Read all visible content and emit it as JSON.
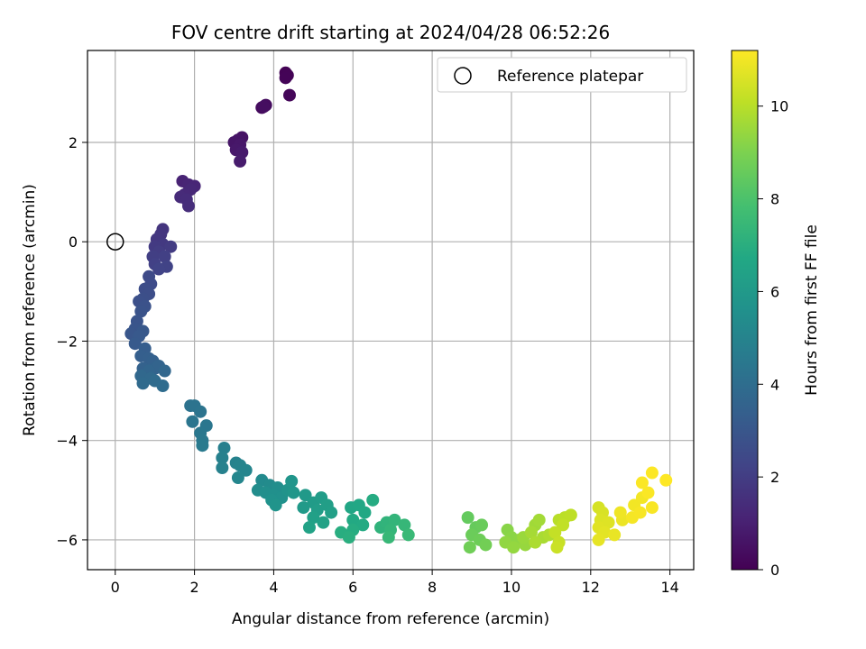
{
  "chart_data": {
    "type": "scatter",
    "title": "FOV centre drift starting at 2024/04/28 06:52:26",
    "xlabel": "Angular distance from reference (arcmin)",
    "ylabel": "Rotation from reference (arcmin)",
    "xlim": [
      -0.7,
      14.6
    ],
    "ylim": [
      -6.6,
      3.85
    ],
    "xticks": [
      0,
      2,
      4,
      6,
      8,
      10,
      12,
      14
    ],
    "yticks": [
      -6,
      -4,
      -2,
      0,
      2
    ],
    "xtick_labels": [
      "0",
      "2",
      "4",
      "6",
      "8",
      "10",
      "12",
      "14"
    ],
    "ytick_labels": [
      "−6",
      "−4",
      "−2",
      "0",
      "2"
    ],
    "grid": true,
    "legend": {
      "position": "top-right",
      "label": "Reference platepar"
    },
    "reference_point": {
      "x": 0,
      "y": 0
    },
    "colorbar": {
      "label": "Hours from first FF file",
      "range": [
        0,
        11.2
      ],
      "ticks": [
        0,
        2,
        4,
        6,
        8,
        10
      ],
      "tick_labels": [
        "0",
        "2",
        "4",
        "6",
        "8",
        "10"
      ],
      "colormap": "viridis"
    },
    "colors": {
      "viridis": [
        "#440154",
        "#482475",
        "#414487",
        "#355f8d",
        "#2a788e",
        "#21918c",
        "#22a884",
        "#44bf70",
        "#7ad151",
        "#bddf26",
        "#fde725"
      ],
      "grid": "#b0b0b0",
      "axis": "#000000"
    },
    "series": [
      {
        "values": [
          [
            4.3,
            3.4,
            0.05
          ],
          [
            4.35,
            3.35,
            0.08
          ],
          [
            4.3,
            3.3,
            0.1
          ],
          [
            4.4,
            2.95,
            0.18
          ],
          [
            3.7,
            2.7,
            0.3
          ],
          [
            3.8,
            2.75,
            0.35
          ],
          [
            3.75,
            2.72,
            0.4
          ],
          [
            3.2,
            2.1,
            0.55
          ],
          [
            3.1,
            2.05,
            0.6
          ],
          [
            3.0,
            2.0,
            0.65
          ],
          [
            3.15,
            1.95,
            0.7
          ],
          [
            3.05,
            1.85,
            0.75
          ],
          [
            3.2,
            1.8,
            0.8
          ],
          [
            3.15,
            1.62,
            0.85
          ],
          [
            1.7,
            1.22,
            1.1
          ],
          [
            1.85,
            1.15,
            1.15
          ],
          [
            2.0,
            1.12,
            1.2
          ],
          [
            1.9,
            1.05,
            1.25
          ],
          [
            1.75,
            0.95,
            1.3
          ],
          [
            1.65,
            0.9,
            1.35
          ],
          [
            1.8,
            0.85,
            1.4
          ],
          [
            1.85,
            0.72,
            1.45
          ],
          [
            1.2,
            0.25,
            1.7
          ],
          [
            1.15,
            0.15,
            1.75
          ],
          [
            1.05,
            0.05,
            1.8
          ],
          [
            1.2,
            -0.05,
            1.85
          ],
          [
            1.0,
            -0.1,
            1.9
          ],
          [
            1.4,
            -0.1,
            1.95
          ],
          [
            1.1,
            -0.2,
            2.0
          ],
          [
            0.95,
            -0.3,
            2.05
          ],
          [
            1.25,
            -0.3,
            2.1
          ],
          [
            1.0,
            -0.45,
            2.15
          ],
          [
            1.3,
            -0.5,
            2.2
          ],
          [
            1.1,
            -0.55,
            2.25
          ],
          [
            0.85,
            -0.7,
            2.5
          ],
          [
            0.9,
            -0.85,
            2.55
          ],
          [
            0.75,
            -0.95,
            2.6
          ],
          [
            0.85,
            -1.05,
            2.65
          ],
          [
            0.7,
            -1.15,
            2.7
          ],
          [
            0.6,
            -1.2,
            2.75
          ],
          [
            0.75,
            -1.3,
            2.8
          ],
          [
            0.65,
            -1.4,
            2.85
          ],
          [
            0.55,
            -1.6,
            2.9
          ],
          [
            0.5,
            -1.75,
            2.95
          ],
          [
            0.4,
            -1.85,
            3.0
          ],
          [
            0.7,
            -1.8,
            3.05
          ],
          [
            0.6,
            -1.9,
            3.1
          ],
          [
            0.5,
            -2.05,
            3.15
          ],
          [
            0.75,
            -2.15,
            3.3
          ],
          [
            0.65,
            -2.3,
            3.35
          ],
          [
            0.85,
            -2.35,
            3.4
          ],
          [
            0.95,
            -2.4,
            3.45
          ],
          [
            0.7,
            -2.55,
            3.5
          ],
          [
            1.0,
            -2.55,
            3.55
          ],
          [
            1.1,
            -2.5,
            3.6
          ],
          [
            0.85,
            -2.6,
            3.65
          ],
          [
            1.25,
            -2.6,
            3.7
          ],
          [
            0.65,
            -2.7,
            3.75
          ],
          [
            0.9,
            -2.75,
            3.8
          ],
          [
            0.7,
            -2.85,
            3.85
          ],
          [
            1.0,
            -2.8,
            3.9
          ],
          [
            1.2,
            -2.9,
            3.95
          ],
          [
            1.9,
            -3.3,
            4.2
          ],
          [
            2.0,
            -3.3,
            4.25
          ],
          [
            2.15,
            -3.42,
            4.3
          ],
          [
            1.95,
            -3.62,
            4.35
          ],
          [
            2.3,
            -3.7,
            4.4
          ],
          [
            2.15,
            -3.85,
            4.45
          ],
          [
            2.2,
            -4.0,
            4.5
          ],
          [
            2.2,
            -4.1,
            4.55
          ],
          [
            2.75,
            -4.15,
            4.8
          ],
          [
            2.7,
            -4.35,
            4.85
          ],
          [
            2.7,
            -4.55,
            4.9
          ],
          [
            3.05,
            -4.45,
            4.95
          ],
          [
            3.15,
            -4.5,
            5.0
          ],
          [
            3.3,
            -4.6,
            5.05
          ],
          [
            3.1,
            -4.75,
            5.1
          ],
          [
            3.7,
            -4.8,
            5.3
          ],
          [
            3.9,
            -4.9,
            5.35
          ],
          [
            3.6,
            -5.0,
            5.4
          ],
          [
            4.1,
            -4.95,
            5.45
          ],
          [
            3.8,
            -5.05,
            5.5
          ],
          [
            4.0,
            -5.1,
            5.55
          ],
          [
            4.2,
            -5.15,
            5.6
          ],
          [
            3.95,
            -5.2,
            5.65
          ],
          [
            4.35,
            -5.0,
            5.7
          ],
          [
            4.05,
            -5.3,
            5.75
          ],
          [
            4.45,
            -4.82,
            5.8
          ],
          [
            4.5,
            -5.05,
            5.85
          ],
          [
            4.8,
            -5.1,
            6.0
          ],
          [
            4.75,
            -5.35,
            6.05
          ],
          [
            5.0,
            -5.25,
            6.1
          ],
          [
            5.2,
            -5.15,
            6.15
          ],
          [
            5.1,
            -5.4,
            6.2
          ],
          [
            5.35,
            -5.3,
            6.25
          ],
          [
            5.45,
            -5.45,
            6.3
          ],
          [
            5.0,
            -5.55,
            6.35
          ],
          [
            5.25,
            -5.65,
            6.4
          ],
          [
            4.9,
            -5.75,
            6.45
          ],
          [
            5.95,
            -5.35,
            6.6
          ],
          [
            6.15,
            -5.3,
            6.65
          ],
          [
            6.3,
            -5.45,
            6.7
          ],
          [
            6.0,
            -5.6,
            6.75
          ],
          [
            6.25,
            -5.7,
            6.8
          ],
          [
            6.5,
            -5.2,
            6.85
          ],
          [
            6.0,
            -5.8,
            6.9
          ],
          [
            5.7,
            -5.85,
            6.95
          ],
          [
            5.9,
            -5.95,
            7.0
          ],
          [
            6.7,
            -5.75,
            7.2
          ],
          [
            6.85,
            -5.65,
            7.25
          ],
          [
            7.05,
            -5.6,
            7.3
          ],
          [
            6.95,
            -5.8,
            7.35
          ],
          [
            7.3,
            -5.7,
            7.4
          ],
          [
            6.9,
            -5.95,
            7.45
          ],
          [
            7.4,
            -5.9,
            7.5
          ],
          [
            8.9,
            -5.55,
            8.5
          ],
          [
            9.1,
            -5.75,
            8.55
          ],
          [
            9.25,
            -5.7,
            8.6
          ],
          [
            9.0,
            -5.9,
            8.65
          ],
          [
            9.2,
            -6.0,
            8.7
          ],
          [
            8.95,
            -6.15,
            8.75
          ],
          [
            9.35,
            -6.1,
            8.8
          ],
          [
            9.9,
            -5.8,
            9.2
          ],
          [
            10.0,
            -5.95,
            9.25
          ],
          [
            10.2,
            -6.0,
            9.3
          ],
          [
            9.85,
            -6.05,
            9.35
          ],
          [
            10.05,
            -6.15,
            9.4
          ],
          [
            10.35,
            -6.1,
            9.45
          ],
          [
            10.3,
            -5.95,
            9.5
          ],
          [
            10.6,
            -5.7,
            9.6
          ],
          [
            10.7,
            -5.6,
            9.65
          ],
          [
            10.5,
            -5.85,
            9.7
          ],
          [
            10.8,
            -5.95,
            9.75
          ],
          [
            10.6,
            -6.05,
            9.8
          ],
          [
            10.95,
            -5.9,
            9.85
          ],
          [
            11.2,
            -5.6,
            10.0
          ],
          [
            11.35,
            -5.55,
            10.05
          ],
          [
            11.5,
            -5.5,
            10.1
          ],
          [
            11.3,
            -5.7,
            10.15
          ],
          [
            11.1,
            -5.85,
            10.2
          ],
          [
            11.2,
            -6.05,
            10.25
          ],
          [
            11.15,
            -6.15,
            10.3
          ],
          [
            12.2,
            -5.35,
            10.5
          ],
          [
            12.3,
            -5.45,
            10.55
          ],
          [
            12.25,
            -5.6,
            10.6
          ],
          [
            12.45,
            -5.65,
            10.65
          ],
          [
            12.2,
            -5.75,
            10.7
          ],
          [
            12.35,
            -5.85,
            10.75
          ],
          [
            12.2,
            -6.0,
            10.8
          ],
          [
            12.6,
            -5.9,
            10.85
          ],
          [
            12.8,
            -5.6,
            10.9
          ],
          [
            12.75,
            -5.45,
            10.95
          ],
          [
            13.1,
            -5.3,
            11.0
          ],
          [
            13.3,
            -5.15,
            11.03
          ],
          [
            13.05,
            -5.55,
            11.06
          ],
          [
            13.25,
            -5.45,
            11.09
          ],
          [
            13.55,
            -5.35,
            11.12
          ],
          [
            13.45,
            -5.05,
            11.14
          ],
          [
            13.3,
            -4.85,
            11.16
          ],
          [
            13.55,
            -4.65,
            11.18
          ],
          [
            13.9,
            -4.8,
            11.2
          ]
        ]
      }
    ]
  }
}
